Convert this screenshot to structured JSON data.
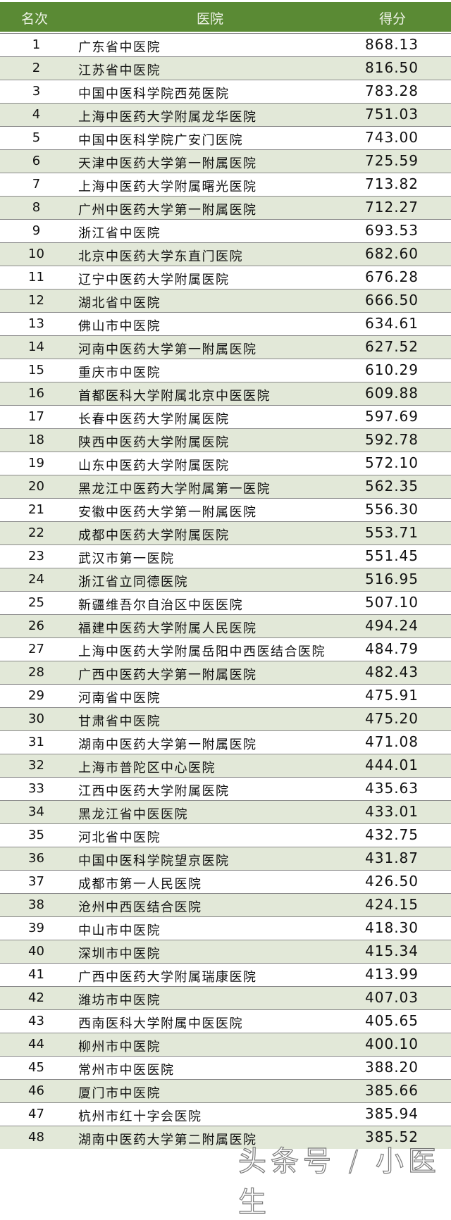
{
  "header": {
    "rank": "名次",
    "hospital": "医院",
    "score": "得分"
  },
  "colors": {
    "header_bg": "#5a8a34",
    "alt_row_bg": "#e2e8d8"
  },
  "rows": [
    [
      "1",
      "广东省中医院",
      "868.13"
    ],
    [
      "2",
      "江苏省中医院",
      "816.50"
    ],
    [
      "3",
      "中国中医科学院西苑医院",
      "783.28"
    ],
    [
      "4",
      "上海中医药大学附属龙华医院",
      "751.03"
    ],
    [
      "5",
      "中国中医科学院广安门医院",
      "743.00"
    ],
    [
      "6",
      "天津中医药大学第一附属医院",
      "725.59"
    ],
    [
      "7",
      "上海中医药大学附属曙光医院",
      "713.82"
    ],
    [
      "8",
      "广州中医药大学第一附属医院",
      "712.27"
    ],
    [
      "9",
      "浙江省中医院",
      "693.53"
    ],
    [
      "10",
      "北京中医药大学东直门医院",
      "682.60"
    ],
    [
      "11",
      "辽宁中医药大学附属医院",
      "676.28"
    ],
    [
      "12",
      "湖北省中医院",
      "666.50"
    ],
    [
      "13",
      "佛山市中医院",
      "634.61"
    ],
    [
      "14",
      "河南中医药大学第一附属医院",
      "627.52"
    ],
    [
      "15",
      "重庆市中医院",
      "610.29"
    ],
    [
      "16",
      "首都医科大学附属北京中医医院",
      "609.88"
    ],
    [
      "17",
      "长春中医药大学附属医院",
      "597.69"
    ],
    [
      "18",
      "陕西中医药大学附属医院",
      "592.78"
    ],
    [
      "19",
      "山东中医药大学附属医院",
      "572.10"
    ],
    [
      "20",
      "黑龙江中医药大学附属第一医院",
      "562.35"
    ],
    [
      "21",
      "安徽中医药大学第一附属医院",
      "556.30"
    ],
    [
      "22",
      "成都中医药大学附属医院",
      "553.71"
    ],
    [
      "23",
      "武汉市第一医院",
      "551.45"
    ],
    [
      "24",
      "浙江省立同德医院",
      "516.95"
    ],
    [
      "25",
      "新疆维吾尔自治区中医医院",
      "507.10"
    ],
    [
      "26",
      "福建中医药大学附属人民医院",
      "494.24"
    ],
    [
      "27",
      "上海中医药大学附属岳阳中西医结合医院",
      "484.79"
    ],
    [
      "28",
      "广西中医药大学第一附属医院",
      "482.43"
    ],
    [
      "29",
      "河南省中医院",
      "475.91"
    ],
    [
      "30",
      "甘肃省中医院",
      "475.20"
    ],
    [
      "31",
      "湖南中医药大学第一附属医院",
      "471.08"
    ],
    [
      "32",
      "上海市普陀区中心医院",
      "444.01"
    ],
    [
      "33",
      "江西中医药大学附属医院",
      "435.63"
    ],
    [
      "34",
      "黑龙江省中医医院",
      "433.01"
    ],
    [
      "35",
      "河北省中医院",
      "432.75"
    ],
    [
      "36",
      "中国中医科学院望京医院",
      "431.87"
    ],
    [
      "37",
      "成都市第一人民医院",
      "426.50"
    ],
    [
      "38",
      "沧州中西医结合医院",
      "424.15"
    ],
    [
      "39",
      "中山市中医院",
      "418.30"
    ],
    [
      "40",
      "深圳市中医院",
      "415.34"
    ],
    [
      "41",
      "广西中医药大学附属瑞康医院",
      "413.99"
    ],
    [
      "42",
      "潍坊市中医院",
      "407.03"
    ],
    [
      "43",
      "西南医科大学附属中医医院",
      "405.65"
    ],
    [
      "44",
      "柳州市中医院",
      "400.10"
    ],
    [
      "45",
      "常州市中医医院",
      "388.20"
    ],
    [
      "46",
      "厦门市中医院",
      "385.66"
    ],
    [
      "47",
      "杭州市红十字会医院",
      "385.94"
    ],
    [
      "48",
      "湖南中医药大学第二附属医院",
      "385.52"
    ]
  ],
  "watermark": "头条号 / 小医生"
}
